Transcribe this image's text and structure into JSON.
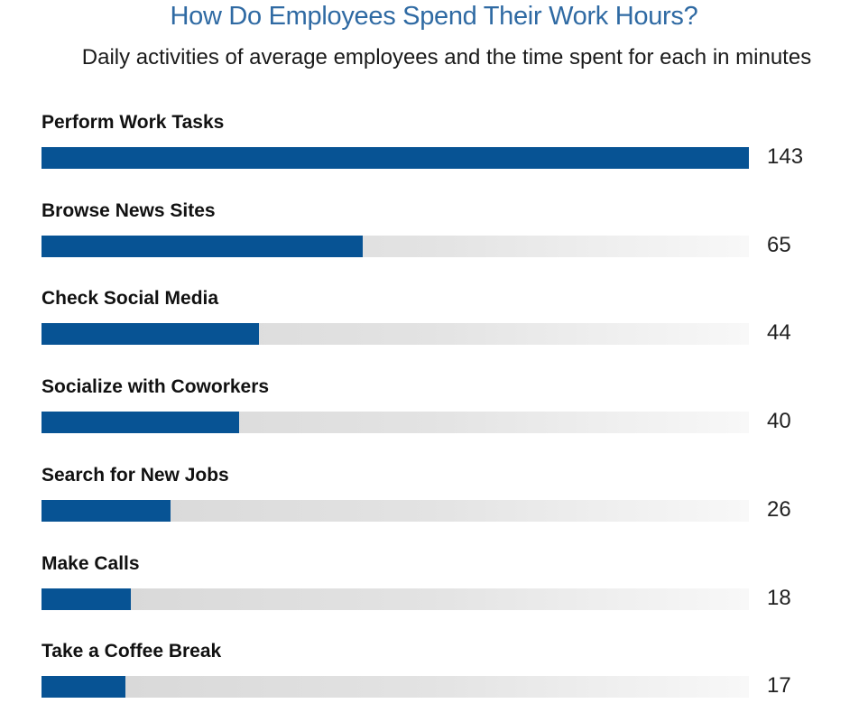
{
  "chart_data": {
    "type": "bar",
    "orientation": "horizontal",
    "title": "How Do Employees Spend Their Work Hours?",
    "subtitle": "Daily activities of average employees and the time spent for each in minutes",
    "categories": [
      "Perform Work Tasks",
      "Browse News Sites",
      "Check Social Media",
      "Socialize with Coworkers",
      "Search for New Jobs",
      "Make Calls",
      "Take a Coffee Break"
    ],
    "values": [
      143,
      65,
      44,
      40,
      26,
      18,
      17
    ],
    "xlim": [
      0,
      143
    ],
    "grid": false,
    "legend": "none",
    "colors": {
      "title": "#2f6aa3",
      "bar": "#075394",
      "track": "#e3e3e3"
    }
  }
}
